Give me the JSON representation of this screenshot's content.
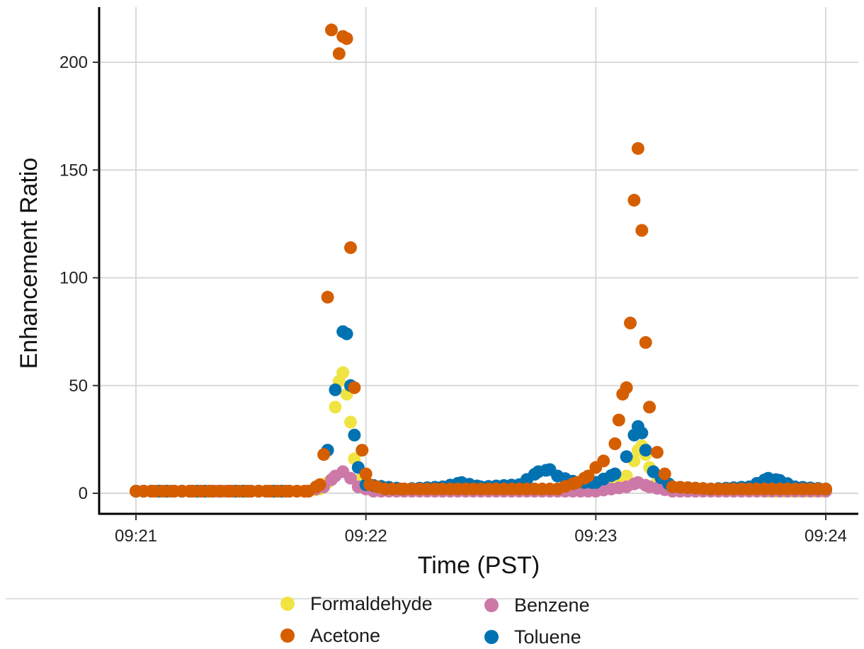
{
  "chart_data": {
    "type": "scatter",
    "xlabel": "Time (PST)",
    "ylabel": "Enhancement Ratio",
    "xlim": [
      "09:21:00",
      "09:24:00"
    ],
    "ylim": [
      -9,
      222
    ],
    "x_ticks": [
      "09:21",
      "09:22",
      "09:23",
      "09:24"
    ],
    "y_ticks": [
      0,
      50,
      100,
      150,
      200
    ],
    "grid": true,
    "legend_position": "bottom",
    "series": [
      {
        "name": "Formaldehyde",
        "color": "#f0e442",
        "points": [
          [
            "09:21:00",
            1
          ],
          [
            "09:21:10",
            1
          ],
          [
            "09:21:20",
            1
          ],
          [
            "09:21:30",
            1
          ],
          [
            "09:21:40",
            1
          ],
          [
            "09:21:45",
            1
          ],
          [
            "09:21:48",
            2
          ],
          [
            "09:21:50",
            5
          ],
          [
            "09:21:52",
            40
          ],
          [
            "09:21:53",
            52
          ],
          [
            "09:21:54",
            56
          ],
          [
            "09:21:55",
            46
          ],
          [
            "09:21:56",
            33
          ],
          [
            "09:21:57",
            16
          ],
          [
            "09:21:58",
            6
          ],
          [
            "09:22:00",
            3
          ],
          [
            "09:22:10",
            1
          ],
          [
            "09:22:30",
            1
          ],
          [
            "09:22:50",
            1
          ],
          [
            "09:22:55",
            2
          ],
          [
            "09:23:00",
            3
          ],
          [
            "09:23:05",
            5
          ],
          [
            "09:23:08",
            8
          ],
          [
            "09:23:10",
            15
          ],
          [
            "09:23:11",
            20
          ],
          [
            "09:23:12",
            22
          ],
          [
            "09:23:13",
            18
          ],
          [
            "09:23:14",
            12
          ],
          [
            "09:23:16",
            5
          ],
          [
            "09:23:20",
            2
          ],
          [
            "09:23:30",
            1
          ],
          [
            "09:23:45",
            1
          ],
          [
            "09:24:00",
            1
          ]
        ]
      },
      {
        "name": "Benzene",
        "color": "#cc79a7",
        "points": [
          [
            "09:21:00",
            1
          ],
          [
            "09:21:15",
            1
          ],
          [
            "09:21:30",
            1
          ],
          [
            "09:21:45",
            1
          ],
          [
            "09:21:49",
            3
          ],
          [
            "09:21:52",
            8
          ],
          [
            "09:21:54",
            10
          ],
          [
            "09:21:56",
            7
          ],
          [
            "09:21:58",
            3
          ],
          [
            "09:22:02",
            1
          ],
          [
            "09:22:20",
            1
          ],
          [
            "09:22:40",
            1
          ],
          [
            "09:23:00",
            1
          ],
          [
            "09:23:08",
            3
          ],
          [
            "09:23:11",
            5
          ],
          [
            "09:23:14",
            3
          ],
          [
            "09:23:20",
            1
          ],
          [
            "09:23:40",
            1
          ],
          [
            "09:24:00",
            1
          ]
        ]
      },
      {
        "name": "Toluene",
        "color": "#0072b2",
        "points": [
          [
            "09:21:00",
            1
          ],
          [
            "09:21:20",
            1
          ],
          [
            "09:21:40",
            1
          ],
          [
            "09:21:50",
            20
          ],
          [
            "09:21:52",
            48
          ],
          [
            "09:21:54",
            75
          ],
          [
            "09:21:55",
            74
          ],
          [
            "09:21:56",
            50
          ],
          [
            "09:21:57",
            27
          ],
          [
            "09:21:58",
            12
          ],
          [
            "09:22:00",
            4
          ],
          [
            "09:22:10",
            2
          ],
          [
            "09:22:20",
            3
          ],
          [
            "09:22:25",
            5
          ],
          [
            "09:22:30",
            3
          ],
          [
            "09:22:40",
            4
          ],
          [
            "09:22:45",
            10
          ],
          [
            "09:22:48",
            11
          ],
          [
            "09:22:50",
            8
          ],
          [
            "09:22:55",
            5
          ],
          [
            "09:23:00",
            5
          ],
          [
            "09:23:05",
            9
          ],
          [
            "09:23:08",
            17
          ],
          [
            "09:23:10",
            27
          ],
          [
            "09:23:11",
            31
          ],
          [
            "09:23:12",
            28
          ],
          [
            "09:23:13",
            20
          ],
          [
            "09:23:15",
            10
          ],
          [
            "09:23:20",
            3
          ],
          [
            "09:23:30",
            2
          ],
          [
            "09:23:40",
            3
          ],
          [
            "09:23:45",
            7
          ],
          [
            "09:23:48",
            6
          ],
          [
            "09:23:52",
            3
          ],
          [
            "09:24:00",
            2
          ]
        ]
      },
      {
        "name": "Acetone",
        "color": "#d55e00",
        "points": [
          [
            "09:21:00",
            1
          ],
          [
            "09:21:05",
            1
          ],
          [
            "09:21:10",
            1
          ],
          [
            "09:21:15",
            1
          ],
          [
            "09:21:20",
            1
          ],
          [
            "09:21:25",
            1
          ],
          [
            "09:21:30",
            1
          ],
          [
            "09:21:35",
            1
          ],
          [
            "09:21:40",
            1
          ],
          [
            "09:21:45",
            1
          ],
          [
            "09:21:48",
            4
          ],
          [
            "09:21:49",
            18
          ],
          [
            "09:21:50",
            91
          ],
          [
            "09:21:51",
            215
          ],
          [
            "09:21:53",
            204
          ],
          [
            "09:21:54",
            212
          ],
          [
            "09:21:55",
            211
          ],
          [
            "09:21:56",
            114
          ],
          [
            "09:21:57",
            49
          ],
          [
            "09:21:59",
            20
          ],
          [
            "09:22:00",
            9
          ],
          [
            "09:22:01",
            4
          ],
          [
            "09:22:05",
            2
          ],
          [
            "09:22:10",
            2
          ],
          [
            "09:22:20",
            2
          ],
          [
            "09:22:30",
            2
          ],
          [
            "09:22:40",
            2
          ],
          [
            "09:22:50",
            2
          ],
          [
            "09:22:55",
            5
          ],
          [
            "09:22:58",
            8
          ],
          [
            "09:23:00",
            12
          ],
          [
            "09:23:02",
            15
          ],
          [
            "09:23:05",
            23
          ],
          [
            "09:23:06",
            34
          ],
          [
            "09:23:07",
            46
          ],
          [
            "09:23:08",
            49
          ],
          [
            "09:23:09",
            79
          ],
          [
            "09:23:10",
            136
          ],
          [
            "09:23:11",
            160
          ],
          [
            "09:23:12",
            122
          ],
          [
            "09:23:13",
            70
          ],
          [
            "09:23:14",
            40
          ],
          [
            "09:23:16",
            19
          ],
          [
            "09:23:18",
            9
          ],
          [
            "09:23:20",
            3
          ],
          [
            "09:23:30",
            2
          ],
          [
            "09:23:40",
            2
          ],
          [
            "09:23:50",
            2
          ],
          [
            "09:24:00",
            2
          ]
        ]
      }
    ],
    "legend": [
      {
        "name": "Formaldehyde",
        "color": "#f0e442"
      },
      {
        "name": "Benzene",
        "color": "#cc79a7"
      },
      {
        "name": "Acetone",
        "color": "#d55e00"
      },
      {
        "name": "Toluene",
        "color": "#0072b2"
      }
    ],
    "draw_order": [
      "Formaldehyde",
      "Benzene",
      "Toluene",
      "Acetone"
    ]
  }
}
